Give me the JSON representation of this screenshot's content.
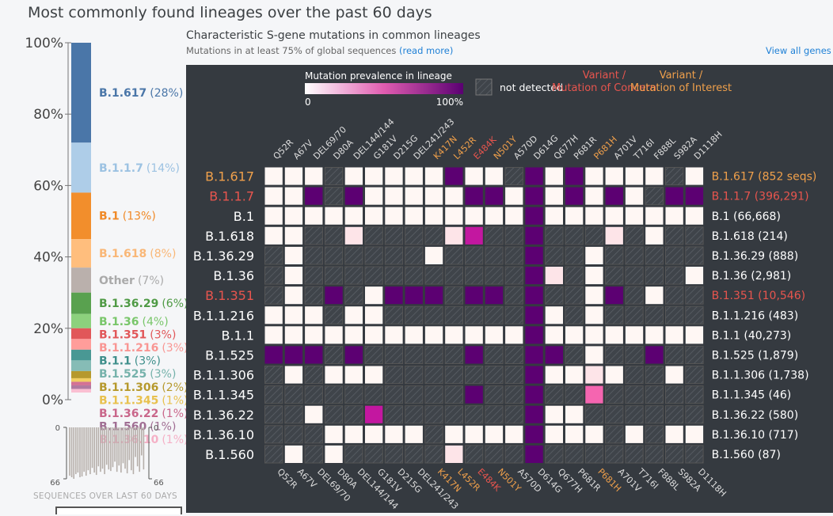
{
  "page": {
    "title": "Most commonly found lineages over the past 60 days",
    "heatmap_title": "Characteristic S-gene mutations in common lineages",
    "heatmap_subtitle": "Mutations in at least 75% of global sequences",
    "read_more": "(read more)",
    "view_all": "View all genes"
  },
  "sparkline": {
    "top_label": "0",
    "bottom_label": "66",
    "caption": "SEQUENCES OVER LAST 60 DAYS",
    "values": [
      62,
      64,
      66,
      60,
      58,
      64,
      63,
      57,
      62,
      55,
      60,
      52,
      58,
      61,
      50,
      57,
      53,
      60,
      48,
      54,
      56,
      51,
      44,
      57,
      49,
      58,
      46,
      53,
      59,
      42,
      55,
      60,
      38,
      50,
      57,
      36,
      54
    ]
  },
  "legend": {
    "prevalence_title": "Mutation prevalence in lineage",
    "min": "0",
    "max": "100%",
    "not_detected": "not detected",
    "voc": "Variant / Mutation of Concern",
    "voi": "Variant / Mutation of Interest",
    "colors": {
      "voc": "#e8554e",
      "voi": "#f0a04b",
      "low": "#fff3ef",
      "mid": "#e05cb0",
      "high": "#5a0072"
    }
  },
  "chart_data": [
    {
      "type": "bar",
      "stacked": true,
      "yticks": [
        "0%",
        "20%",
        "40%",
        "60%",
        "80%",
        "100%"
      ],
      "ylim": [
        0,
        100
      ],
      "segments": [
        {
          "name": "B.1.617",
          "value": 28,
          "label": "(28%)",
          "color": "#4a76a8",
          "text_color": "#4a76a8"
        },
        {
          "name": "B.1.1.7",
          "value": 14,
          "label": "(14%)",
          "color": "#aecde8",
          "text_color": "#9cc2e2"
        },
        {
          "name": "B.1",
          "value": 13,
          "label": "(13%)",
          "color": "#f28e2c",
          "text_color": "#f08a28"
        },
        {
          "name": "B.1.618",
          "value": 8,
          "label": "(8%)",
          "color": "#ffbe7d",
          "text_color": "#f9b777"
        },
        {
          "name": "Other",
          "value": 7,
          "label": "(7%)",
          "color": "#bab0ac",
          "text_color": "#aaa"
        },
        {
          "name": "B.1.36.29",
          "value": 6,
          "label": "(6%)",
          "color": "#59a14f",
          "text_color": "#4f9a45"
        },
        {
          "name": "B.1.36",
          "value": 4,
          "label": "(4%)",
          "color": "#8cd17d",
          "text_color": "#79c66a"
        },
        {
          "name": "B.1.351",
          "value": 3,
          "label": "(3%)",
          "color": "#e15759",
          "text_color": "#e15759"
        },
        {
          "name": "B.1.1.216",
          "value": 3,
          "label": "(3%)",
          "color": "#ff9d9a",
          "text_color": "#f99693"
        },
        {
          "name": "B.1.1",
          "value": 3,
          "label": "(3%)",
          "color": "#499894",
          "text_color": "#3f8f8b"
        },
        {
          "name": "B.1.525",
          "value": 3,
          "label": "(3%)",
          "color": "#86bcb6",
          "text_color": "#76b2ab"
        },
        {
          "name": "B.1.1.306",
          "value": 2,
          "label": "(2%)",
          "color": "#b6992d",
          "text_color": "#b6992d"
        },
        {
          "name": "B.1.1.345",
          "value": 1,
          "label": "(1%)",
          "color": "#f1ce63",
          "text_color": "#e8c14e"
        },
        {
          "name": "B.1.36.22",
          "value": 1,
          "label": "(1%)",
          "color": "#d37295",
          "text_color": "#c9668a"
        },
        {
          "name": "B.1.560",
          "value": 1,
          "label": "(1%)",
          "color": "#b07aa1",
          "text_color": "#a06e93"
        },
        {
          "name": "B.1.36.10",
          "value": 1,
          "label": "(1%)",
          "color": "#fabfd2",
          "text_color": "#f5b0c6"
        }
      ]
    },
    {
      "type": "heatmap",
      "title": "Characteristic S-gene mutations in common lineages",
      "mutations": [
        "Q52R",
        "A67V",
        "DEL69/70",
        "D80A",
        "DEL144/144",
        "G181V",
        "D215G",
        "DEL241/243",
        "K417N",
        "L452R",
        "E484K",
        "N501Y",
        "A570D",
        "D614G",
        "Q677H",
        "P681R",
        "P681H",
        "A701V",
        "T716I",
        "F888L",
        "S982A",
        "D1118H"
      ],
      "mutation_status": [
        "",
        "",
        "",
        "",
        "",
        "",
        "",
        "",
        "voi",
        "voi",
        "voc",
        "voi",
        "",
        "",
        "",
        "",
        "voi",
        "",
        "",
        "",
        "",
        ""
      ],
      "lineages": [
        {
          "name": "B.1.617",
          "right_label": "B.1.617 (852 seqs)",
          "status": "voi",
          "values": [
            0,
            0,
            0,
            -1,
            0,
            0,
            0,
            0,
            0,
            1,
            0,
            0,
            -1,
            1,
            0,
            1,
            0,
            0,
            0,
            0,
            -1,
            0
          ]
        },
        {
          "name": "B.1.1.7",
          "right_label": "B.1.1.7 (396,291)",
          "status": "voc",
          "values": [
            0,
            0,
            1,
            -1,
            1,
            0,
            0,
            0,
            0,
            0,
            1,
            1,
            0,
            1,
            0,
            1,
            0,
            1,
            0,
            -1,
            1,
            1
          ]
        },
        {
          "name": "B.1",
          "right_label": "B.1 (66,668)",
          "status": "",
          "values": [
            0,
            0,
            0,
            0,
            0,
            0,
            0,
            0,
            0,
            0,
            0,
            0,
            0,
            1,
            0,
            0,
            0,
            0,
            0,
            0,
            0,
            0
          ]
        },
        {
          "name": "B.1.618",
          "right_label": "B.1.618 (214)",
          "status": "",
          "values": [
            0,
            0,
            -1,
            -1,
            0.05,
            -1,
            -1,
            -1,
            -1,
            0.05,
            0.7,
            -1,
            -1,
            0.9,
            -1,
            -1,
            -1,
            0.05,
            -1,
            0,
            -1,
            -1
          ]
        },
        {
          "name": "B.1.36.29",
          "right_label": "B.1.36.29 (888)",
          "status": "",
          "values": [
            -1,
            0,
            -1,
            -1,
            -1,
            -1,
            -1,
            -1,
            0,
            -1,
            -1,
            -1,
            -1,
            0.9,
            -1,
            -1,
            0,
            -1,
            -1,
            -1,
            -1,
            -1
          ]
        },
        {
          "name": "B.1.36",
          "right_label": "B.1.36 (2,981)",
          "status": "",
          "values": [
            -1,
            0,
            -1,
            -1,
            -1,
            -1,
            -1,
            -1,
            -1,
            -1,
            -1,
            -1,
            -1,
            0.9,
            0.05,
            -1,
            0,
            -1,
            -1,
            -1,
            -1,
            0
          ]
        },
        {
          "name": "B.1.351",
          "right_label": "B.1.351 (10,546)",
          "status": "voc",
          "values": [
            -1,
            0,
            -1,
            1,
            -1,
            0,
            1,
            0.95,
            1,
            -1,
            1,
            1,
            -1,
            1,
            -1,
            -1,
            0,
            1,
            -1,
            0,
            -1,
            -1
          ]
        },
        {
          "name": "B.1.1.216",
          "right_label": "B.1.1.216 (483)",
          "status": "",
          "values": [
            0,
            0,
            0,
            -1,
            0,
            0,
            -1,
            -1,
            -1,
            -1,
            -1,
            -1,
            -1,
            1,
            0,
            -1,
            0,
            -1,
            -1,
            -1,
            -1,
            -1
          ]
        },
        {
          "name": "B.1.1",
          "right_label": "B.1.1 (40,273)",
          "status": "",
          "values": [
            0,
            0,
            0,
            0,
            0,
            0,
            0,
            0,
            0,
            0,
            0,
            0,
            0,
            1,
            0,
            0,
            0,
            0,
            0,
            0,
            0,
            0
          ]
        },
        {
          "name": "B.1.525",
          "right_label": "B.1.525 (1,879)",
          "status": "",
          "values": [
            0.9,
            1,
            0.95,
            -1,
            1,
            -1,
            -1,
            -1,
            -1,
            -1,
            1,
            -1,
            -1,
            1,
            1,
            -1,
            0,
            -1,
            -1,
            1,
            -1,
            -1
          ]
        },
        {
          "name": "B.1.1.306",
          "right_label": "B.1.1.306 (1,738)",
          "status": "",
          "values": [
            -1,
            0,
            -1,
            0,
            0,
            0,
            -1,
            -1,
            -1,
            -1,
            -1,
            -1,
            -1,
            1,
            0,
            0,
            0.05,
            0,
            -1,
            -1,
            0,
            -1
          ]
        },
        {
          "name": "B.1.1.345",
          "right_label": "B.1.1.345 (46)",
          "status": "",
          "values": [
            -1,
            -1,
            -1,
            -1,
            -1,
            -1,
            -1,
            -1,
            -1,
            -1,
            1,
            -1,
            -1,
            1,
            -1,
            -1,
            0.55,
            -1,
            -1,
            -1,
            -1,
            -1
          ]
        },
        {
          "name": "B.1.36.22",
          "right_label": "B.1.36.22 (580)",
          "status": "",
          "values": [
            -1,
            -1,
            0,
            -1,
            -1,
            0.8,
            -1,
            -1,
            -1,
            -1,
            -1,
            -1,
            -1,
            1,
            0,
            0,
            -1,
            -1,
            -1,
            -1,
            -1,
            -1
          ]
        },
        {
          "name": "B.1.36.10",
          "right_label": "B.1.36.10 (717)",
          "status": "",
          "values": [
            -1,
            -1,
            -1,
            0,
            0,
            0,
            0,
            0,
            -1,
            0,
            0,
            0,
            0,
            1,
            0,
            0,
            0,
            -1,
            0,
            -1,
            0,
            0
          ]
        },
        {
          "name": "B.1.560",
          "right_label": "B.1.560 (87)",
          "status": "",
          "values": [
            -1,
            0,
            -1,
            0,
            -1,
            -1,
            -1,
            -1,
            -1,
            0.05,
            -1,
            -1,
            -1,
            1,
            -1,
            -1,
            -1,
            -1,
            -1,
            -1,
            -1,
            -1
          ]
        }
      ]
    }
  ]
}
